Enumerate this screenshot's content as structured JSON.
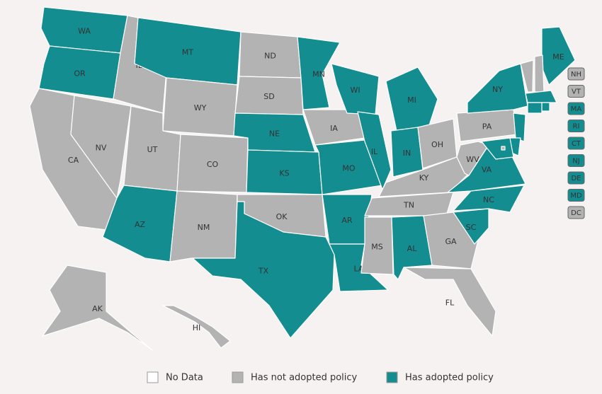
{
  "colors": {
    "none": "#ffffff",
    "not_adopted": "#b3b3b3",
    "adopted": "#138d90"
  },
  "legend": [
    {
      "label": "No Data",
      "status": "none"
    },
    {
      "label": "Has not adopted policy",
      "status": "not_adopted"
    },
    {
      "label": "Has adopted policy",
      "status": "adopted"
    }
  ],
  "states": [
    {
      "label": "WA",
      "status": "adopted"
    },
    {
      "label": "OR",
      "status": "adopted"
    },
    {
      "label": "CA",
      "status": "not_adopted"
    },
    {
      "label": "NV",
      "status": "not_adopted"
    },
    {
      "label": "ID",
      "status": "not_adopted"
    },
    {
      "label": "MT",
      "status": "adopted"
    },
    {
      "label": "WY",
      "status": "not_adopted"
    },
    {
      "label": "UT",
      "status": "not_adopted"
    },
    {
      "label": "CO",
      "status": "not_adopted"
    },
    {
      "label": "AZ",
      "status": "adopted"
    },
    {
      "label": "NM",
      "status": "not_adopted"
    },
    {
      "label": "ND",
      "status": "not_adopted"
    },
    {
      "label": "SD",
      "status": "not_adopted"
    },
    {
      "label": "NE",
      "status": "adopted"
    },
    {
      "label": "KS",
      "status": "adopted"
    },
    {
      "label": "OK",
      "status": "not_adopted"
    },
    {
      "label": "TX",
      "status": "adopted"
    },
    {
      "label": "MN",
      "status": "adopted"
    },
    {
      "label": "IA",
      "status": "not_adopted"
    },
    {
      "label": "MO",
      "status": "adopted"
    },
    {
      "label": "AR",
      "status": "adopted"
    },
    {
      "label": "LA",
      "status": "adopted"
    },
    {
      "label": "WI",
      "status": "adopted"
    },
    {
      "label": "IL",
      "status": "adopted"
    },
    {
      "label": "MI",
      "status": "adopted"
    },
    {
      "label": "IN",
      "status": "adopted"
    },
    {
      "label": "OH",
      "status": "not_adopted"
    },
    {
      "label": "KY",
      "status": "not_adopted"
    },
    {
      "label": "TN",
      "status": "not_adopted"
    },
    {
      "label": "MS",
      "status": "not_adopted"
    },
    {
      "label": "AL",
      "status": "adopted"
    },
    {
      "label": "GA",
      "status": "not_adopted"
    },
    {
      "label": "FL",
      "status": "not_adopted"
    },
    {
      "label": "SC",
      "status": "adopted"
    },
    {
      "label": "NC",
      "status": "adopted"
    },
    {
      "label": "VA",
      "status": "adopted"
    },
    {
      "label": "WV",
      "status": "not_adopted"
    },
    {
      "label": "PA",
      "status": "not_adopted"
    },
    {
      "label": "NY",
      "status": "adopted"
    },
    {
      "label": "ME",
      "status": "adopted"
    },
    {
      "label": "AK",
      "status": "not_adopted"
    },
    {
      "label": "HI",
      "status": "not_adopted"
    }
  ],
  "inset_states": [
    {
      "label": "NH",
      "status": "not_adopted"
    },
    {
      "label": "VT",
      "status": "not_adopted"
    },
    {
      "label": "MA",
      "status": "adopted"
    },
    {
      "label": "RI",
      "status": "adopted"
    },
    {
      "label": "CT",
      "status": "adopted"
    },
    {
      "label": "NJ",
      "status": "adopted"
    },
    {
      "label": "DE",
      "status": "adopted"
    },
    {
      "label": "MD",
      "status": "adopted"
    },
    {
      "label": "DC",
      "status": "not_adopted"
    }
  ]
}
